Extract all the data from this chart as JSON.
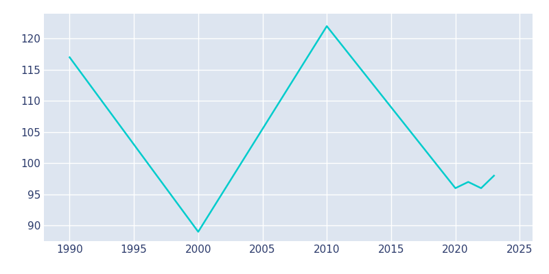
{
  "years": [
    1990,
    2000,
    2010,
    2020,
    2021,
    2022,
    2023
  ],
  "population": [
    117,
    89,
    122,
    96,
    97,
    96,
    98
  ],
  "line_color": "#00CCCC",
  "fig_facecolor": "#FFFFFF",
  "axes_facecolor": "#DDE5F0",
  "grid_color": "#FFFFFF",
  "xlabel": "",
  "ylabel": "",
  "xlim": [
    1988,
    2026
  ],
  "ylim": [
    87.5,
    124
  ],
  "xticks": [
    1990,
    1995,
    2000,
    2005,
    2010,
    2015,
    2020,
    2025
  ],
  "yticks": [
    90,
    95,
    100,
    105,
    110,
    115,
    120
  ],
  "line_width": 1.8,
  "tick_label_color": "#2B3A6B",
  "tick_fontsize": 11
}
